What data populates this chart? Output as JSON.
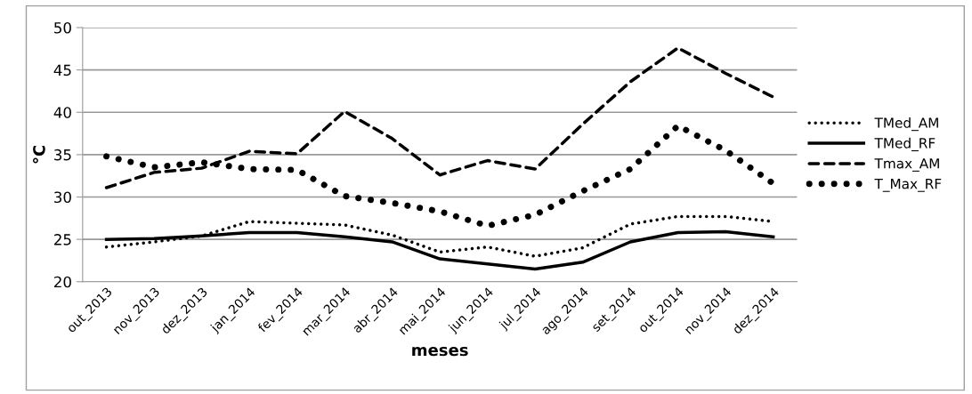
{
  "chart_data": {
    "type": "line",
    "xlabel": "meses",
    "ylabel": "°C",
    "categories": [
      "out_2013",
      "nov_2013",
      "dez_2013",
      "jan_2014",
      "fev_2014",
      "mar_2014",
      "abr_2014",
      "mai_2014",
      "jun_2014",
      "jul_2014",
      "ago_2014",
      "set_2014",
      "out_2014",
      "nov_2014",
      "dez_2014"
    ],
    "series": [
      {
        "name": "TMed_AM",
        "color": "#000000",
        "line_style": "dotted",
        "values": [
          24.1,
          24.7,
          25.4,
          27.1,
          26.9,
          26.7,
          25.5,
          23.5,
          24.1,
          23.0,
          24.0,
          26.8,
          27.7,
          27.7,
          27.1
        ]
      },
      {
        "name": "TMed_RF",
        "color": "#000000",
        "line_style": "solid",
        "values": [
          25.0,
          25.1,
          25.4,
          25.8,
          25.8,
          25.3,
          24.7,
          22.7,
          22.1,
          21.5,
          22.3,
          24.7,
          25.8,
          25.9,
          25.3
        ]
      },
      {
        "name": "Tmax_AM",
        "color": "#000000",
        "line_style": "dashed",
        "values": [
          31.1,
          32.9,
          33.4,
          35.4,
          35.1,
          40.1,
          36.9,
          32.6,
          34.3,
          33.3,
          38.6,
          43.6,
          47.6,
          44.6,
          41.8
        ]
      },
      {
        "name": "T_Max_RF",
        "color": "#000000",
        "line_style": "dotted",
        "values": [
          34.8,
          33.5,
          34.1,
          33.3,
          33.2,
          30.1,
          29.3,
          28.3,
          26.6,
          27.9,
          30.7,
          33.3,
          38.4,
          35.5,
          31.6
        ]
      }
    ],
    "ylim": [
      20,
      50
    ],
    "yticks": [
      20,
      25,
      30,
      35,
      40,
      45,
      50
    ],
    "grid": "y",
    "legend": "right"
  }
}
